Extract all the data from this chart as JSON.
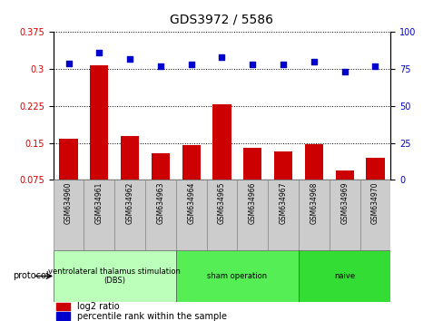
{
  "title": "GDS3972 / 5586",
  "samples": [
    "GSM634960",
    "GSM634961",
    "GSM634962",
    "GSM634963",
    "GSM634964",
    "GSM634965",
    "GSM634966",
    "GSM634967",
    "GSM634968",
    "GSM634969",
    "GSM634970"
  ],
  "log2_ratio": [
    0.158,
    0.307,
    0.163,
    0.128,
    0.145,
    0.228,
    0.14,
    0.132,
    0.147,
    0.093,
    0.12
  ],
  "percentile_rank": [
    79,
    86,
    82,
    77,
    78,
    83,
    78,
    78,
    80,
    73,
    77
  ],
  "ylim_left": [
    0.075,
    0.375
  ],
  "ylim_right": [
    0,
    100
  ],
  "yticks_left": [
    0.075,
    0.15,
    0.225,
    0.3,
    0.375
  ],
  "yticks_right": [
    0,
    25,
    50,
    75,
    100
  ],
  "bar_color": "#cc0000",
  "scatter_color": "#0000cc",
  "protocol_groups": [
    {
      "label": "ventrolateral thalamus stimulation\n(DBS)",
      "start": 0,
      "end": 3,
      "color": "#bbffbb"
    },
    {
      "label": "sham operation",
      "start": 4,
      "end": 7,
      "color": "#55ee55"
    },
    {
      "label": "naive",
      "start": 8,
      "end": 10,
      "color": "#33dd33"
    }
  ],
  "legend_bar_label": "log2 ratio",
  "legend_scatter_label": "percentile rank within the sample",
  "protocol_label": "protocol",
  "tick_label_color_left": "#cc0000",
  "tick_label_color_right": "#0000cc",
  "sample_box_color": "#cccccc",
  "bottom_box_color": "#cccccc"
}
